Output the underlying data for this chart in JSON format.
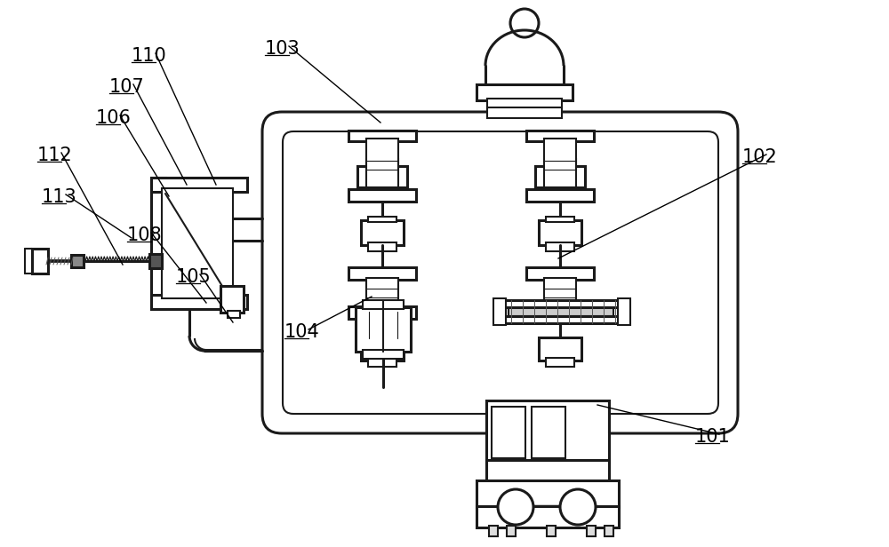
{
  "background_color": "#ffffff",
  "line_color": "#1a1a1a",
  "lw": 1.5,
  "lw2": 2.2,
  "figsize": [
    10.0,
    6.16
  ],
  "dpi": 100,
  "labels": [
    [
      "110",
      148,
      547,
      243,
      408
    ],
    [
      "107",
      123,
      512,
      210,
      408
    ],
    [
      "106",
      108,
      477,
      190,
      395
    ],
    [
      "112",
      42,
      435,
      138,
      318
    ],
    [
      "113",
      47,
      388,
      148,
      348
    ],
    [
      "108",
      143,
      345,
      232,
      275
    ],
    [
      "105",
      198,
      298,
      262,
      253
    ],
    [
      "103",
      298,
      555,
      428,
      478
    ],
    [
      "104",
      320,
      236,
      418,
      282
    ],
    [
      "102",
      835,
      433,
      628,
      325
    ],
    [
      "101",
      782,
      118,
      672,
      160
    ]
  ]
}
